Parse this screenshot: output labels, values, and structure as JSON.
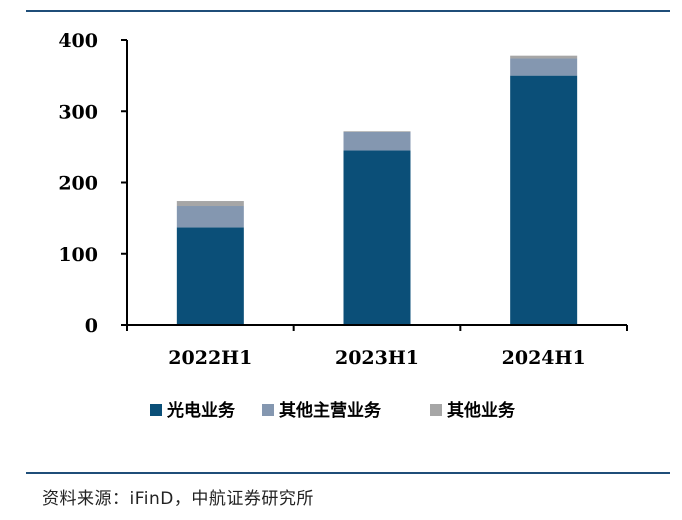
{
  "chart_data": {
    "type": "bar",
    "stacked": true,
    "categories": [
      "2022H1",
      "2023H1",
      "2024H1"
    ],
    "series": [
      {
        "name": "光电业务",
        "values": [
          137,
          245,
          350
        ],
        "color": "#0b4f78"
      },
      {
        "name": "其他主营业务",
        "values": [
          30,
          26,
          24
        ],
        "color": "#8497b0"
      },
      {
        "name": "其他业务",
        "values": [
          7,
          1,
          4
        ],
        "color": "#a6a6a6"
      }
    ],
    "ylim": [
      0,
      400
    ],
    "yticks": [
      0,
      100,
      200,
      300,
      400
    ],
    "ytick_labels": [
      "0",
      "100",
      "200",
      "300",
      "400"
    ],
    "legend_position": "bottom",
    "grid": false
  },
  "source": "资料来源：iFinD，中航证券研究所"
}
